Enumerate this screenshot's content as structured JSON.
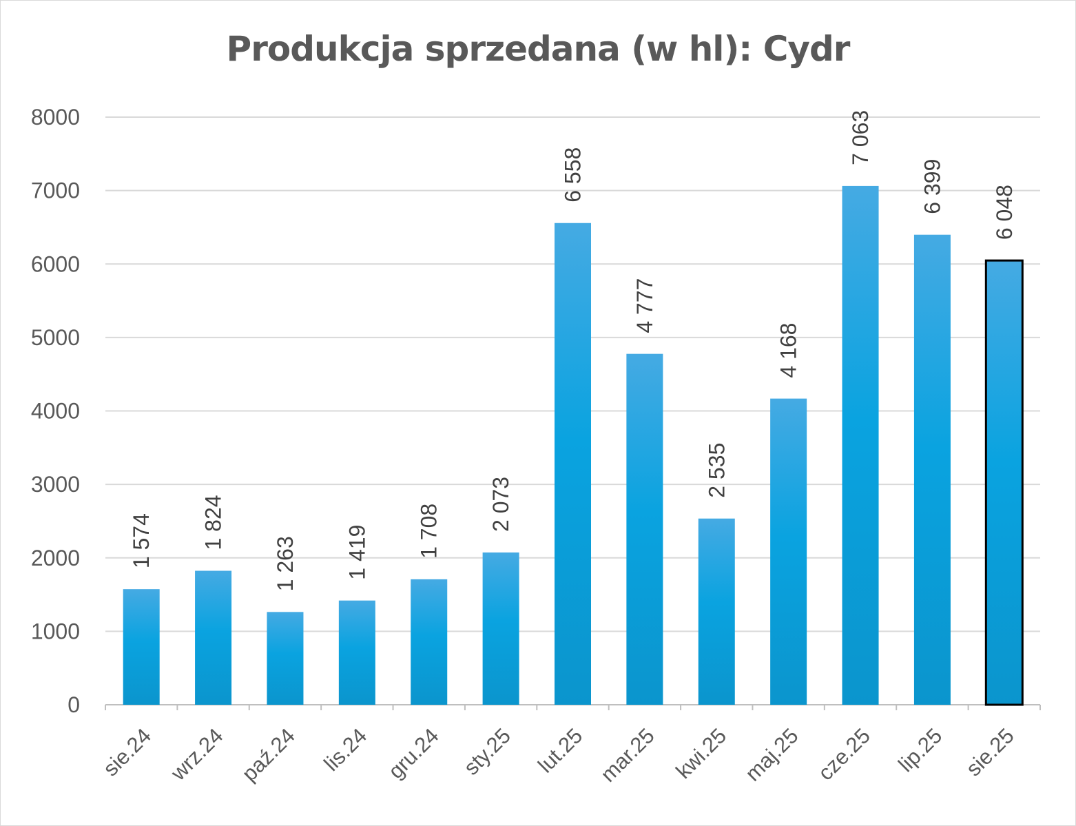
{
  "chart_data": {
    "type": "bar",
    "title": "Produkcja sprzedana (w hl): Cydr",
    "xlabel": "",
    "ylabel": "",
    "ylim": [
      0,
      8000
    ],
    "yticks": [
      0,
      1000,
      2000,
      3000,
      4000,
      5000,
      6000,
      7000,
      8000
    ],
    "grid": true,
    "categories": [
      "sie.24",
      "wrz.24",
      "paź.24",
      "lis.24",
      "gru.24",
      "sty.25",
      "lut.25",
      "mar.25",
      "kwi.25",
      "maj.25",
      "cze.25",
      "lip.25",
      "sie.25"
    ],
    "values": [
      1574,
      1824,
      1263,
      1419,
      1708,
      2073,
      6558,
      4777,
      2535,
      4168,
      7063,
      6399,
      6048
    ],
    "data_labels": [
      "1 574",
      "1 824",
      "1 263",
      "1 419",
      "1 708",
      "2 073",
      "6 558",
      "4 777",
      "2 535",
      "4 168",
      "7 063",
      "6 399",
      "6 048"
    ],
    "highlighted_category": "sie.25",
    "colors": {
      "bar_top": "#45aae3",
      "bar_mid": "#0aa3e0",
      "bar_bottom": "#0b95cd",
      "highlight_border": "#000000",
      "grid": "#d9d9d9",
      "axis": "#bfbfbf",
      "text": "#595959"
    }
  }
}
